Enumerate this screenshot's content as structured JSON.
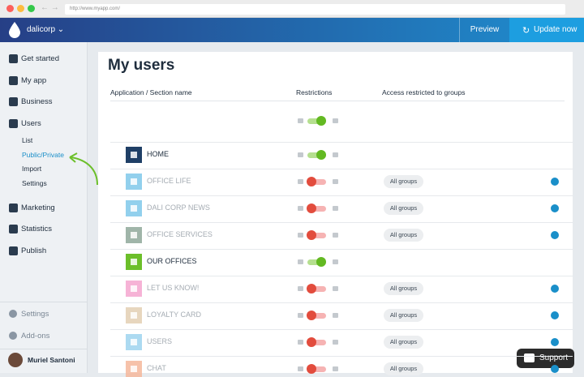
{
  "browser": {
    "url": "http://www.myapp.com/"
  },
  "header": {
    "org": "dalicorp",
    "preview": "Preview",
    "update": "Update now"
  },
  "sidebar": {
    "items": [
      {
        "label": "Get started"
      },
      {
        "label": "My app"
      },
      {
        "label": "Business"
      },
      {
        "label": "Users",
        "sub": [
          {
            "label": "List"
          },
          {
            "label": "Public/Private",
            "active": true
          },
          {
            "label": "Import"
          },
          {
            "label": "Settings"
          }
        ]
      },
      {
        "label": "Marketing"
      },
      {
        "label": "Statistics"
      },
      {
        "label": "Publish"
      }
    ],
    "bottom": [
      {
        "label": "Settings"
      },
      {
        "label": "Add-ons"
      }
    ],
    "user": "Muriel Santoni"
  },
  "main": {
    "title": "My users",
    "columns": [
      "Application / Section name",
      "Restrictions",
      "Access restricted to groups"
    ],
    "global_public": true,
    "rows": [
      {
        "name": "HOME",
        "icon_color": "#1f3f66",
        "public": true
      },
      {
        "name": "OFFICE LIFE",
        "icon_color": "#7fc8ea",
        "public": false,
        "groups": "All groups"
      },
      {
        "name": "DALI CORP NEWS",
        "icon_color": "#7fc8ea",
        "public": false,
        "groups": "All groups"
      },
      {
        "name": "OFFICE SERVICES",
        "icon_color": "#8fa89a",
        "public": false,
        "groups": "All groups"
      },
      {
        "name": "OUR OFFICES",
        "icon_color": "#6cbf2a",
        "public": true
      },
      {
        "name": "LET US KNOW!",
        "icon_color": "#f4a6cf",
        "public": false,
        "groups": "All groups"
      },
      {
        "name": "LOYALTY CARD",
        "icon_color": "#e3cfb3",
        "public": false,
        "groups": "All groups"
      },
      {
        "name": "USERS",
        "icon_color": "#9ed3ef",
        "public": false,
        "groups": "All groups"
      },
      {
        "name": "CHAT",
        "icon_color": "#f4b79b",
        "public": false,
        "groups": "All groups"
      }
    ]
  },
  "support": "Support"
}
